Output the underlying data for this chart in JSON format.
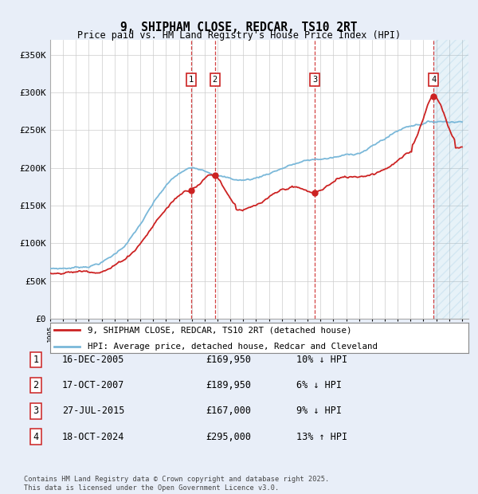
{
  "title": "9, SHIPHAM CLOSE, REDCAR, TS10 2RT",
  "subtitle": "Price paid vs. HM Land Registry's House Price Index (HPI)",
  "xlim_start": 1995.0,
  "xlim_end": 2027.5,
  "ylim": [
    0,
    370000
  ],
  "yticks": [
    0,
    50000,
    100000,
    150000,
    200000,
    250000,
    300000,
    350000
  ],
  "ytick_labels": [
    "£0",
    "£50K",
    "£100K",
    "£150K",
    "£200K",
    "£250K",
    "£300K",
    "£350K"
  ],
  "sale_dates": [
    2005.96,
    2007.79,
    2015.56,
    2024.8
  ],
  "sale_prices": [
    169950,
    189950,
    167000,
    295000
  ],
  "sale_labels": [
    "1",
    "2",
    "3",
    "4"
  ],
  "hpi_color": "#7ab8d9",
  "price_color": "#cc2222",
  "sale_line_color": "#cc2222",
  "legend_line1": "9, SHIPHAM CLOSE, REDCAR, TS10 2RT (detached house)",
  "legend_line2": "HPI: Average price, detached house, Redcar and Cleveland",
  "table_rows": [
    [
      "1",
      "16-DEC-2005",
      "£169,950",
      "10% ↓ HPI"
    ],
    [
      "2",
      "17-OCT-2007",
      "£189,950",
      "6% ↓ HPI"
    ],
    [
      "3",
      "27-JUL-2015",
      "£167,000",
      "9% ↓ HPI"
    ],
    [
      "4",
      "18-OCT-2024",
      "£295,000",
      "13% ↑ HPI"
    ]
  ],
  "footnote": "Contains HM Land Registry data © Crown copyright and database right 2025.\nThis data is licensed under the Open Government Licence v3.0.",
  "background_color": "#e8eef8",
  "plot_bg_color": "#ffffff",
  "grid_color": "#cccccc"
}
